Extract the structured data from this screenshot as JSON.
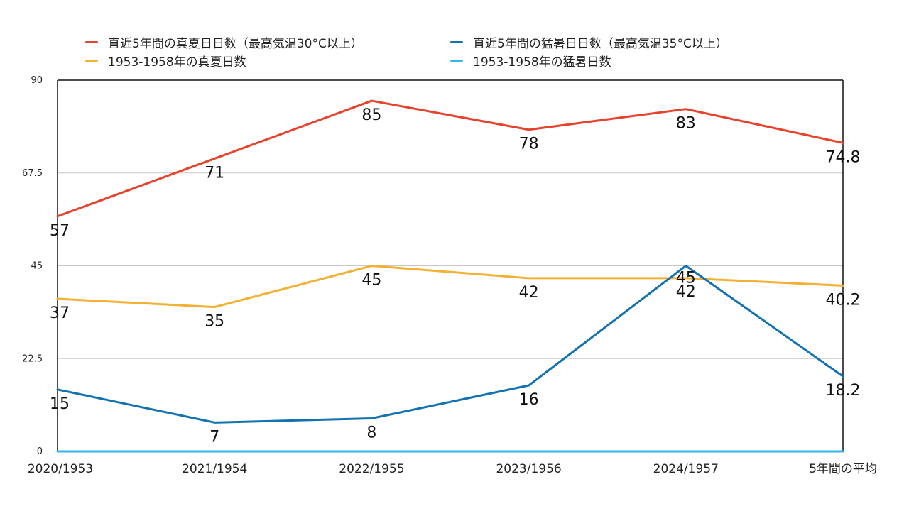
{
  "chart_data": {
    "type": "line",
    "categories": [
      "2020/1953",
      "2021/1954",
      "2022/1955",
      "2023/1956",
      "2024/1957",
      "5年間の平均"
    ],
    "ylim": [
      0,
      90
    ],
    "yticks": [
      "0",
      "22.5",
      "45",
      "67.5",
      "90"
    ],
    "grid": true,
    "legend_position": "top",
    "series": [
      {
        "name": "直近5年間の真夏日日数（最高気温30°C以上）",
        "color": "#e8412c",
        "values": [
          57,
          71,
          85,
          78,
          83,
          74.8
        ],
        "labels": [
          "57",
          "71",
          "85",
          "78",
          "83",
          "74.8"
        ]
      },
      {
        "name": "直近5年間の猛暑日日数（最高気温35°C以上）",
        "color": "#1472b0",
        "values": [
          15,
          7,
          8,
          16,
          45,
          18.2
        ],
        "labels": [
          "15",
          "7",
          "8",
          "16",
          "45",
          "18.2"
        ]
      },
      {
        "name": "1953-1958年の真夏日数",
        "color": "#f2b134",
        "values": [
          37,
          35,
          45,
          42,
          42,
          40.2
        ],
        "labels": [
          "37",
          "35",
          "45",
          "42",
          "42",
          "40.2"
        ]
      },
      {
        "name": "1953-1958年の猛暑日数",
        "color": "#35b6ea",
        "values": [
          0,
          0,
          0,
          0,
          0,
          0
        ],
        "labels": []
      }
    ]
  }
}
